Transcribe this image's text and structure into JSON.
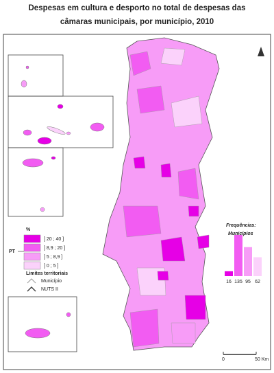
{
  "title": [
    "Despesas em cultura e desporto no total de despesas das",
    "câmaras municipais, por município, 2010"
  ],
  "legend": {
    "unit": "%",
    "classes": [
      {
        "label": "] 20 ; 40 ]",
        "color": "#e600e6"
      },
      {
        "label": "] 8,9 ; 20 ]",
        "color": "#f25cf2"
      },
      {
        "label": "] 5 ; 8,9 ]",
        "color": "#f79cf7"
      },
      {
        "label": "] 0 ; 5 ]",
        "color": "#fbd2fb"
      }
    ]
  },
  "region_label": "PT",
  "boundaries": {
    "title": "Limites territoriais",
    "items": [
      "Município",
      "NUTS II"
    ]
  },
  "frequencies": {
    "title": "Frequências:",
    "subtitle": "Municípios",
    "values": [
      16,
      135,
      95,
      62
    ]
  },
  "scale": {
    "start": "0",
    "end": "50 Km"
  }
}
